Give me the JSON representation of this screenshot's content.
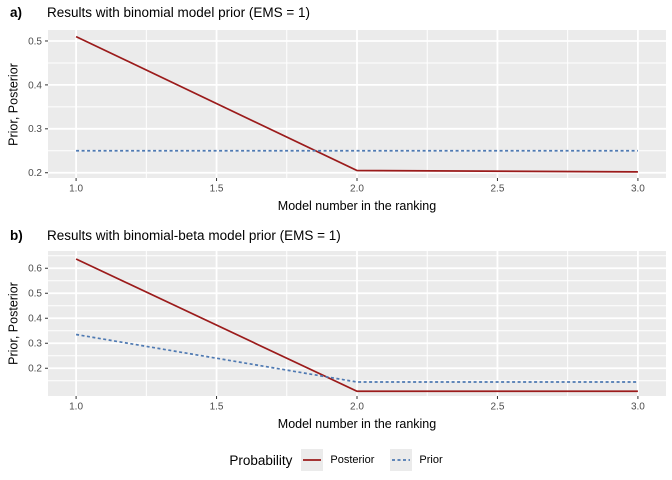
{
  "colors": {
    "background": "#FFFFFF",
    "posterior": "#9B1B1B",
    "prior": "#4E79B2",
    "panel_bg": "#EBEBEB",
    "grid_major": "#FFFFFF",
    "grid_minor": "#F7F7F7",
    "tick_mark": "#333333",
    "tick_label": "#4D4D4D",
    "text": "#000000"
  },
  "legend": {
    "title": "Probability",
    "entries": [
      {
        "label": "Posterior",
        "style": "solid",
        "color": "#9B1B1B"
      },
      {
        "label": "Prior",
        "style": "dashed",
        "color": "#4E79B2"
      }
    ]
  },
  "chart_data": [
    {
      "type": "line",
      "tag": "a)",
      "title": "Results with binomial model prior (EMS = 1)",
      "xlabel": "Model number in the ranking",
      "ylabel": "Prior, Posterior",
      "x": [
        1,
        2,
        3
      ],
      "series": [
        {
          "name": "Posterior",
          "style": "solid",
          "color": "#9B1B1B",
          "values": [
            0.51,
            0.205,
            0.202
          ]
        },
        {
          "name": "Prior",
          "style": "dashed",
          "color": "#4E79B2",
          "values": [
            0.25,
            0.25,
            0.25
          ]
        }
      ],
      "xlim": [
        0.9,
        3.1
      ],
      "ylim": [
        0.188,
        0.525
      ],
      "x_ticks": [
        1.0,
        1.5,
        2.0,
        2.5,
        3.0
      ],
      "y_ticks": [
        0.2,
        0.3,
        0.4,
        0.5
      ],
      "grid": true,
      "legend_position": "bottom"
    },
    {
      "type": "line",
      "tag": "b)",
      "title": "Results with binomial-beta model prior (EMS = 1)",
      "xlabel": "Model number in the ranking",
      "ylabel": "Prior, Posterior",
      "x": [
        1,
        2,
        3
      ],
      "series": [
        {
          "name": "Posterior",
          "style": "solid",
          "color": "#9B1B1B",
          "values": [
            0.637,
            0.108,
            0.108
          ]
        },
        {
          "name": "Prior",
          "style": "dashed",
          "color": "#4E79B2",
          "values": [
            0.335,
            0.145,
            0.145
          ]
        }
      ],
      "xlim": [
        0.9,
        3.1
      ],
      "ylim": [
        0.089,
        0.669
      ],
      "x_ticks": [
        1.0,
        1.5,
        2.0,
        2.5,
        3.0
      ],
      "y_ticks": [
        0.2,
        0.3,
        0.4,
        0.5,
        0.6
      ],
      "grid": true,
      "legend_position": "bottom"
    }
  ]
}
